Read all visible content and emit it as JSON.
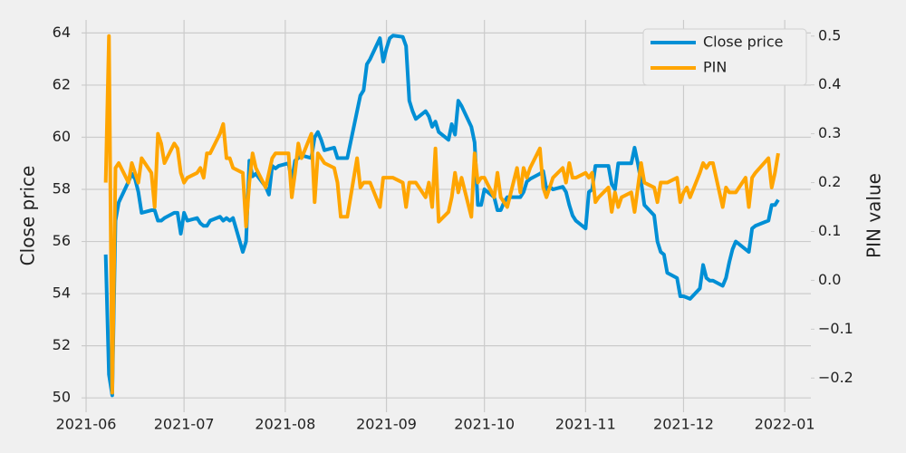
{
  "chart_data": {
    "type": "line",
    "x_label": "",
    "y_label": "Close price",
    "y2_label": "PIN value",
    "x": [
      6,
      7,
      8,
      9,
      10,
      13,
      14,
      15,
      16,
      17,
      20,
      21,
      22,
      23,
      24,
      27,
      28,
      29,
      30,
      31,
      34,
      35,
      36,
      37,
      38,
      41,
      42,
      43,
      44,
      45,
      48,
      49,
      50,
      51,
      52,
      55,
      56,
      57,
      58,
      59,
      62,
      63,
      64,
      65,
      66,
      69,
      70,
      71,
      72,
      73,
      76,
      77,
      78,
      79,
      80,
      83,
      84,
      85,
      86,
      87,
      90,
      91,
      92,
      93,
      94,
      97,
      98,
      99,
      100,
      101,
      104,
      105,
      106,
      107,
      108,
      111,
      112,
      113,
      114,
      115,
      118,
      119,
      120,
      121,
      122,
      125,
      126,
      127,
      128,
      129,
      132,
      133,
      134,
      135,
      136,
      139,
      140,
      141,
      142,
      143,
      146,
      147,
      148,
      149,
      150,
      153,
      154,
      155,
      156,
      157,
      160,
      161,
      162,
      163,
      164,
      167,
      168,
      169,
      170,
      171,
      174,
      175,
      176,
      177,
      178,
      181,
      182,
      183,
      184,
      185,
      188,
      189,
      190,
      191,
      192,
      195,
      196,
      197,
      198,
      199,
      202,
      203,
      204,
      205,
      209,
      210,
      211,
      212
    ],
    "series": [
      {
        "name": "Close price",
        "color": "#008fd5",
        "values": [
          55.5,
          50.9,
          50.1,
          56.8,
          57.5,
          58.3,
          58.6,
          58.4,
          57.9,
          57.1,
          57.2,
          57.2,
          56.8,
          56.8,
          56.9,
          57.1,
          57.1,
          56.3,
          57.1,
          56.8,
          56.9,
          56.7,
          56.6,
          56.6,
          56.8,
          56.95,
          56.8,
          56.9,
          56.8,
          56.9,
          55.6,
          56.0,
          59.1,
          58.5,
          58.6,
          58.1,
          57.8,
          58.9,
          58.8,
          58.9,
          59.0,
          58.3,
          59.1,
          59.2,
          59.3,
          59.2,
          60.0,
          60.2,
          59.9,
          59.5,
          59.6,
          59.2,
          59.2,
          59.2,
          59.2,
          61.0,
          61.6,
          61.8,
          62.8,
          63.0,
          63.8,
          62.9,
          63.4,
          63.8,
          63.9,
          63.85,
          63.5,
          61.4,
          61.0,
          60.7,
          61.0,
          60.8,
          60.4,
          60.6,
          60.2,
          59.9,
          60.5,
          60.1,
          61.4,
          61.2,
          60.4,
          59.8,
          57.4,
          57.4,
          58.0,
          57.7,
          57.2,
          57.2,
          57.5,
          57.7,
          57.7,
          57.7,
          57.9,
          58.3,
          58.4,
          58.6,
          58.7,
          58.0,
          58.1,
          58.0,
          58.1,
          57.9,
          57.4,
          57.0,
          56.8,
          56.5,
          57.9,
          58.0,
          58.9,
          58.9,
          58.9,
          58.2,
          58.0,
          59.0,
          59.0,
          59.0,
          59.6,
          59.0,
          58.3,
          57.4,
          57.0,
          56.0,
          55.6,
          55.5,
          54.8,
          54.6,
          53.9,
          53.9,
          53.85,
          53.8,
          54.2,
          55.1,
          54.6,
          54.5,
          54.5,
          54.3,
          54.6,
          55.2,
          55.7,
          56.0,
          55.7,
          55.6,
          56.5,
          56.6,
          56.8,
          57.4,
          57.4,
          57.6
        ]
      },
      {
        "name": "PIN",
        "color": "#ffa500",
        "axis": "y2",
        "values": [
          0.2,
          0.5,
          -0.23,
          0.23,
          0.24,
          0.2,
          0.24,
          0.22,
          0.2,
          0.25,
          0.22,
          0.15,
          0.3,
          0.28,
          0.24,
          0.28,
          0.27,
          0.22,
          0.2,
          0.21,
          0.22,
          0.23,
          0.21,
          0.26,
          0.26,
          0.3,
          0.32,
          0.25,
          0.25,
          0.23,
          0.22,
          0.11,
          0.2,
          0.26,
          0.23,
          0.19,
          0.22,
          0.25,
          0.26,
          0.26,
          0.26,
          0.17,
          0.22,
          0.28,
          0.25,
          0.3,
          0.16,
          0.26,
          0.25,
          0.24,
          0.23,
          0.2,
          0.13,
          0.13,
          0.13,
          0.25,
          0.19,
          0.2,
          0.2,
          0.2,
          0.15,
          0.21,
          0.21,
          0.21,
          0.21,
          0.2,
          0.15,
          0.2,
          0.2,
          0.2,
          0.17,
          0.2,
          0.15,
          0.27,
          0.12,
          0.14,
          0.17,
          0.22,
          0.18,
          0.21,
          0.13,
          0.26,
          0.2,
          0.21,
          0.21,
          0.17,
          0.22,
          0.17,
          0.16,
          0.15,
          0.23,
          0.18,
          0.23,
          0.21,
          0.23,
          0.27,
          0.19,
          0.17,
          0.19,
          0.21,
          0.23,
          0.2,
          0.24,
          0.21,
          0.21,
          0.22,
          0.21,
          0.22,
          0.16,
          0.17,
          0.19,
          0.14,
          0.18,
          0.15,
          0.17,
          0.18,
          0.14,
          0.19,
          0.24,
          0.2,
          0.19,
          0.16,
          0.2,
          0.2,
          0.2,
          0.21,
          0.16,
          0.18,
          0.19,
          0.17,
          0.22,
          0.24,
          0.23,
          0.24,
          0.24,
          0.15,
          0.19,
          0.18,
          0.18,
          0.18,
          0.21,
          0.15,
          0.21,
          0.22,
          0.25,
          0.19,
          0.22,
          0.26
        ]
      }
    ],
    "xlim": [
      -1.4,
      222
    ],
    "xticks": [
      {
        "value": 0,
        "label": "2021-06"
      },
      {
        "value": 30,
        "label": "2021-07"
      },
      {
        "value": 61,
        "label": "2021-08"
      },
      {
        "value": 92,
        "label": "2021-09"
      },
      {
        "value": 122,
        "label": "2021-10"
      },
      {
        "value": 153,
        "label": "2021-11"
      },
      {
        "value": 183,
        "label": "2021-12"
      },
      {
        "value": 214,
        "label": "2022-01"
      }
    ],
    "ylim": [
      49.45,
      64.5
    ],
    "yticks": [
      50,
      52,
      54,
      56,
      58,
      60,
      62,
      64
    ],
    "y2lim": [
      -0.27,
      0.533
    ],
    "y2ticks": [
      {
        "value": -0.2,
        "label": "−0.2"
      },
      {
        "value": -0.1,
        "label": "−0.1"
      },
      {
        "value": 0,
        "label": "0.0"
      },
      0.1,
      0.2,
      0.3,
      0.4,
      0.5
    ],
    "grid": true,
    "legend": "upper right"
  }
}
